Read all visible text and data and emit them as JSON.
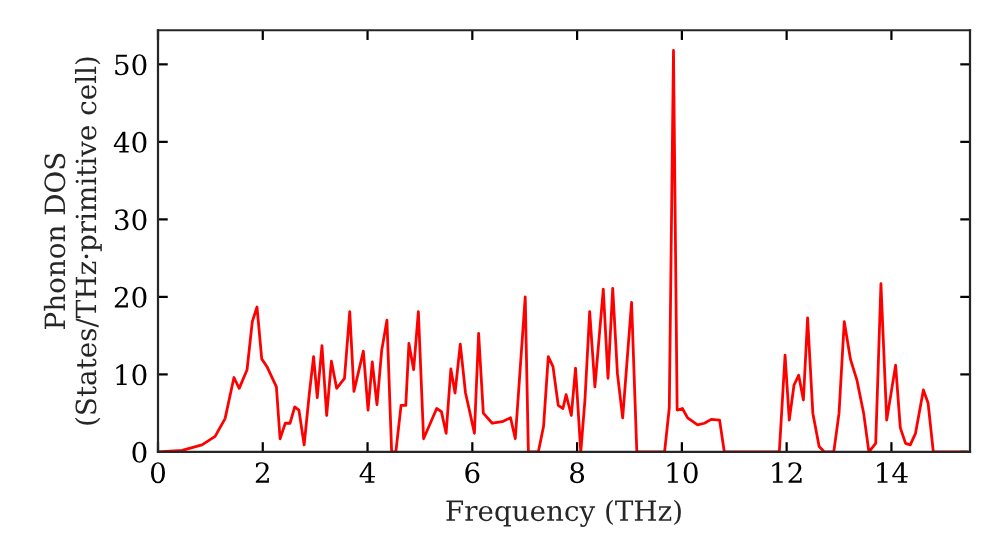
{
  "chart_data": {
    "type": "line",
    "xlabel": "Frequency (THz)",
    "ylabel": "Phonon DOS\n(States/THz·primitive cell)",
    "xlim": [
      0,
      15.5
    ],
    "ylim": [
      0,
      54.4
    ],
    "xticks": [
      0,
      2,
      4,
      6,
      8,
      10,
      12,
      14
    ],
    "yticks": [
      0,
      10,
      20,
      30,
      40,
      50
    ],
    "grid": false,
    "marker": "none",
    "line_style": "solid",
    "series": [
      {
        "color": "#ff0000",
        "x": [
          0,
          0.46,
          0.84,
          1.09,
          1.28,
          1.45,
          1.55,
          1.7,
          1.8,
          1.89,
          1.98,
          2.08,
          2.26,
          2.33,
          2.43,
          2.52,
          2.61,
          2.69,
          2.79,
          2.89,
          2.97,
          3.04,
          3.13,
          3.22,
          3.31,
          3.41,
          3.56,
          3.66,
          3.74,
          3.92,
          4.01,
          4.09,
          4.18,
          4.27,
          4.37,
          4.46,
          4.54,
          4.64,
          4.73,
          4.79,
          4.88,
          4.97,
          5.07,
          5.32,
          5.41,
          5.5,
          5.59,
          5.67,
          5.77,
          5.87,
          5.95,
          6.04,
          6.12,
          6.21,
          6.38,
          6.57,
          6.73,
          6.82,
          7.01,
          7.07,
          7.26,
          7.36,
          7.45,
          7.54,
          7.64,
          7.73,
          7.79,
          7.89,
          7.97,
          8.07,
          8.15,
          8.24,
          8.34,
          8.5,
          8.59,
          8.68,
          8.77,
          8.87,
          9.04,
          9.14,
          9.67,
          9.76,
          9.84,
          9.91,
          10.01,
          10.11,
          10.3,
          10.43,
          10.56,
          10.72,
          10.81,
          11.86,
          11.97,
          12.05,
          12.14,
          12.23,
          12.32,
          12.4,
          12.5,
          12.62,
          12.72,
          12.9,
          13.0,
          13.1,
          13.22,
          13.34,
          13.47,
          13.57,
          13.7,
          13.8,
          13.91,
          14.08,
          14.17,
          14.27,
          14.36,
          14.46,
          14.61,
          14.7,
          14.8,
          15.44
        ],
        "values": [
          0,
          0.2,
          0.9,
          2.0,
          4.3,
          9.6,
          8.2,
          10.6,
          16.8,
          18.7,
          12.0,
          11.0,
          8.4,
          1.7,
          3.7,
          3.7,
          5.8,
          5.4,
          0.9,
          7.6,
          12.3,
          7.0,
          13.7,
          4.7,
          11.7,
          8.2,
          9.5,
          18.1,
          7.8,
          13.0,
          5.4,
          11.6,
          6.1,
          13.1,
          17.0,
          0,
          0,
          6.0,
          6.0,
          14.0,
          10.6,
          18.1,
          1.7,
          5.6,
          5.2,
          2.4,
          10.7,
          7.6,
          13.9,
          7.6,
          5.2,
          2.4,
          15.3,
          5.0,
          3.7,
          3.9,
          4.4,
          1.7,
          20.0,
          0,
          0,
          3.3,
          12.3,
          11.0,
          6.0,
          5.6,
          7.4,
          4.7,
          10.8,
          0,
          6.7,
          18.1,
          8.4,
          21.0,
          9.5,
          21.1,
          10.1,
          4.4,
          19.3,
          0,
          0,
          5.7,
          51.8,
          5.4,
          5.6,
          4.4,
          3.5,
          3.7,
          4.2,
          4.1,
          0,
          0,
          12.5,
          4.1,
          8.6,
          9.9,
          6.7,
          17.3,
          5.0,
          0.7,
          0,
          0,
          5.0,
          16.8,
          11.9,
          9.3,
          5.0,
          0,
          1.1,
          21.7,
          4.1,
          11.2,
          3.1,
          1.1,
          0.9,
          2.4,
          8.0,
          6.3,
          0,
          0
        ]
      }
    ]
  }
}
